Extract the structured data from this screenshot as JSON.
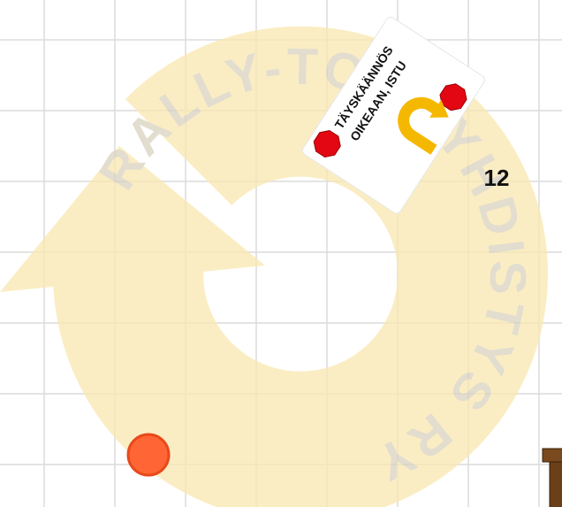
{
  "watermark": "RALLY-TOKOYHDISTYS RY",
  "sign": {
    "title": "TÄYSKÄÄNNÖS",
    "subtitle": "OIKEAAN, ISTU"
  },
  "sign_number": "12"
}
